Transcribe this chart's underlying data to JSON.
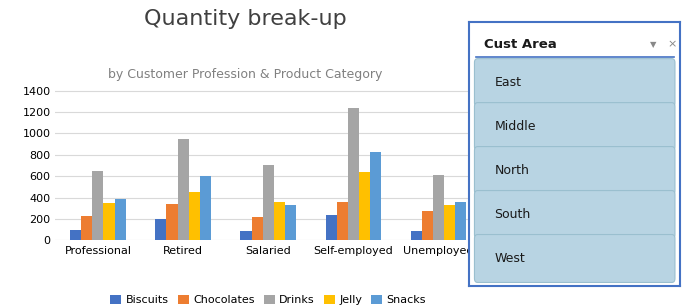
{
  "title": "Quantity break-up",
  "subtitle": "by Customer Profession & Product Category",
  "categories": [
    "Professional",
    "Retired",
    "Salaried",
    "Self-employed",
    "Unemployed"
  ],
  "series": {
    "Biscuits": [
      100,
      200,
      90,
      240,
      90
    ],
    "Chocolates": [
      230,
      340,
      215,
      360,
      275
    ],
    "Drinks": [
      650,
      950,
      700,
      1240,
      615
    ],
    "Jelly": [
      350,
      450,
      355,
      635,
      330
    ],
    "Snacks": [
      385,
      600,
      330,
      825,
      360
    ]
  },
  "bar_colors": [
    "#4472c4",
    "#ed7d31",
    "#a5a5a5",
    "#ffc000",
    "#5b9bd5"
  ],
  "legend_labels": [
    "Biscuits",
    "Chocolates",
    "Drinks",
    "Jelly",
    "Snacks"
  ],
  "ylim": [
    0,
    1500
  ],
  "yticks": [
    0,
    200,
    400,
    600,
    800,
    1000,
    1200,
    1400
  ],
  "slicer_title": "Cust Area",
  "slicer_items": [
    "East",
    "Middle",
    "North",
    "South",
    "West"
  ],
  "background_color": "#ffffff",
  "plot_bg": "#ffffff",
  "grid_color": "#d9d9d9",
  "slicer_border": "#4472c4",
  "slicer_item_bg": "#b8d4e3",
  "slicer_item_border": "#9abfcf",
  "title_color": "#404040",
  "subtitle_color": "#808080",
  "title_fontsize": 16,
  "subtitle_fontsize": 9,
  "tick_fontsize": 8,
  "legend_fontsize": 8
}
